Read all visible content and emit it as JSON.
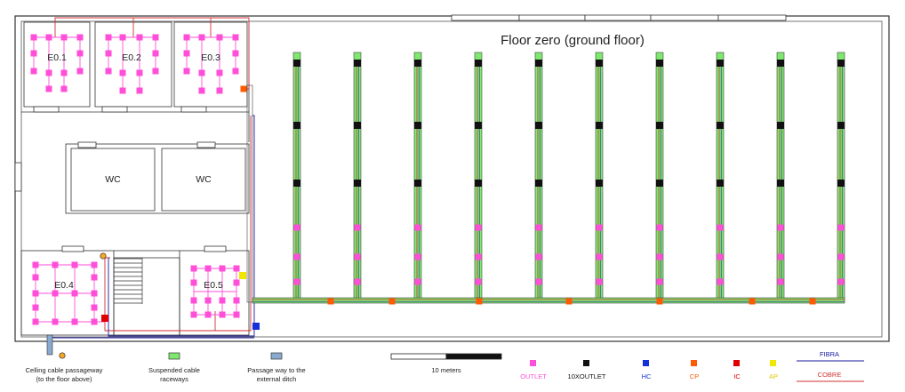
{
  "title": "Floor zero (ground floor)",
  "rooms": {
    "e01": "E0.1",
    "e02": "E0.2",
    "e03": "E0.3",
    "e04": "E0.4",
    "e05": "E0.5",
    "wc1": "WC",
    "wc2": "WC"
  },
  "legend": {
    "ceiling_passage": [
      "Celling cable passageway",
      "(to the floor above)"
    ],
    "raceways": [
      "Suspended cable",
      "raceways"
    ],
    "ditch_passage": [
      "Passage way to the",
      "external ditch"
    ],
    "scale": "10 meters",
    "outlet": "OUTLET",
    "outlet10": "10XOUTLET",
    "hc": "HC",
    "cp": "CP",
    "ic": "IC",
    "ap": "AP",
    "fibra": "FIBRA",
    "cobre": "COBRE"
  },
  "colors": {
    "outlet": "#ff4fd8",
    "outlet10": "#111111",
    "hc": "#1530d8",
    "cp": "#ff5a00",
    "ic": "#e00000",
    "ap": "#f2e600",
    "fibra": "#1a1a9e",
    "cobre": "#d03030",
    "raceway": "#7fe86f"
  }
}
